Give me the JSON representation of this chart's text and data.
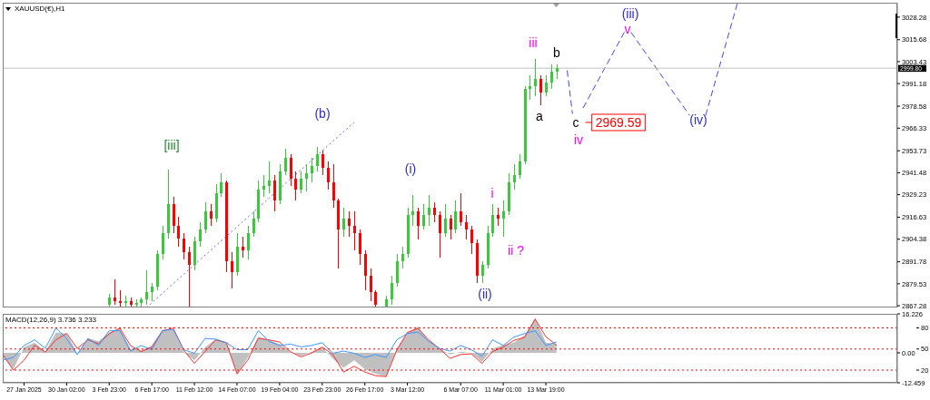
{
  "chart_data": [
    {
      "type": "candlestick",
      "title": "XAUUSD(€),H1",
      "categories": [
        null,
        null,
        null,
        null,
        null,
        null,
        null,
        null,
        null,
        null,
        null,
        null,
        null,
        null,
        null,
        null,
        null,
        null,
        null,
        null,
        null,
        null,
        null,
        null,
        null,
        null,
        null,
        null,
        null,
        null,
        null,
        null,
        null,
        null,
        null,
        null,
        null,
        null,
        null,
        null,
        null,
        null,
        null,
        null,
        null,
        null,
        null,
        null,
        null,
        null,
        null,
        null,
        null,
        null,
        null,
        null,
        null,
        null,
        null,
        null,
        null,
        null,
        null,
        null,
        null,
        null,
        null,
        null,
        null,
        null,
        null,
        null,
        null,
        null,
        null,
        null,
        null,
        null,
        null,
        null,
        null,
        null,
        null,
        null,
        null,
        null,
        null,
        null,
        null,
        null,
        null,
        null,
        null,
        null,
        null,
        null,
        null,
        null,
        null,
        null,
        null,
        null,
        null,
        null,
        null,
        null,
        null,
        null,
        null,
        null,
        null,
        null,
        null,
        null,
        null,
        null,
        null,
        null,
        null,
        null,
        null,
        null,
        null,
        null,
        null,
        null,
        null,
        null,
        null,
        null,
        null,
        null,
        null,
        null,
        null,
        null,
        null,
        null,
        null,
        null,
        null,
        null,
        null,
        null,
        null,
        null,
        null,
        null,
        null,
        null,
        null,
        null,
        null,
        null,
        null,
        null,
        null,
        null,
        null,
        null,
        null,
        null,
        null,
        null,
        null,
        null,
        null,
        null,
        null
      ],
      "ohlc": [
        null,
        null,
        null,
        null,
        null,
        null,
        null,
        null,
        null,
        null,
        null,
        null,
        null,
        null,
        null,
        null,
        null,
        null,
        null,
        null,
        [
          2868,
          2874,
          2867,
          2872
        ],
        [
          2872,
          2882,
          2868,
          2870
        ],
        [
          2870,
          2876,
          2867,
          2869
        ],
        [
          2869,
          2873,
          2867,
          2870
        ],
        [
          2870,
          2872,
          2867,
          2868
        ],
        [
          2868,
          2871,
          2867,
          2869
        ],
        [
          2869,
          2872,
          2867,
          2871
        ],
        [
          2871,
          2887,
          2868,
          2875
        ],
        [
          2875,
          2880,
          2870,
          2878
        ],
        [
          2878,
          2898,
          2876,
          2896
        ],
        [
          2896,
          2912,
          2893,
          2908
        ],
        [
          2908,
          2943,
          2905,
          2924
        ],
        [
          2924,
          2928,
          2908,
          2912
        ],
        [
          2912,
          2917,
          2900,
          2905
        ],
        [
          2905,
          2908,
          2893,
          2897
        ],
        [
          2897,
          2900,
          2867,
          2890
        ],
        [
          2890,
          2906,
          2887,
          2903
        ],
        [
          2903,
          2914,
          2900,
          2910
        ],
        [
          2910,
          2925,
          2908,
          2920
        ],
        [
          2920,
          2924,
          2912,
          2916
        ],
        [
          2916,
          2935,
          2914,
          2930
        ],
        [
          2930,
          2941,
          2928,
          2936
        ],
        [
          2936,
          2937,
          2886,
          2892
        ],
        [
          2892,
          2897,
          2877,
          2886
        ],
        [
          2886,
          2908,
          2884,
          2900
        ],
        [
          2900,
          2906,
          2894,
          2898
        ],
        [
          2898,
          2912,
          2893,
          2908
        ],
        [
          2908,
          2920,
          2906,
          2916
        ],
        [
          2916,
          2937,
          2914,
          2932
        ],
        [
          2932,
          2940,
          2928,
          2934
        ],
        [
          2934,
          2948,
          2930,
          2937
        ],
        [
          2937,
          2940,
          2920,
          2926
        ],
        [
          2926,
          2946,
          2924,
          2942
        ],
        [
          2942,
          2955,
          2940,
          2950
        ],
        [
          2950,
          2952,
          2934,
          2938
        ],
        [
          2938,
          2942,
          2926,
          2932
        ],
        [
          2932,
          2942,
          2930,
          2938
        ],
        [
          2938,
          2946,
          2931,
          2941
        ],
        [
          2941,
          2950,
          2936,
          2945
        ],
        [
          2945,
          2956,
          2942,
          2952
        ],
        [
          2952,
          2954,
          2940,
          2944
        ],
        [
          2944,
          2948,
          2932,
          2936
        ],
        [
          2936,
          2946,
          2922,
          2926
        ],
        [
          2926,
          2927,
          2888,
          2910
        ],
        [
          2910,
          2922,
          2906,
          2916
        ],
        [
          2916,
          2920,
          2906,
          2912
        ],
        [
          2912,
          2920,
          2898,
          2908
        ],
        [
          2908,
          2910,
          2890,
          2896
        ],
        [
          2896,
          2898,
          2876,
          2884
        ],
        [
          2884,
          2888,
          2870,
          2875
        ],
        [
          2875,
          2876,
          2867,
          2868
        ],
        null,
        [
          2867,
          2873,
          2867,
          2871
        ],
        [
          2871,
          2884,
          2868,
          2880
        ],
        [
          2880,
          2896,
          2878,
          2892
        ],
        [
          2892,
          2900,
          2888,
          2896
        ],
        [
          2896,
          2922,
          2894,
          2918
        ],
        [
          2918,
          2929,
          2912,
          2920
        ],
        [
          2920,
          2922,
          2904,
          2912
        ],
        [
          2912,
          2924,
          2910,
          2918
        ],
        [
          2918,
          2929,
          2912,
          2922
        ],
        [
          2922,
          2925,
          2914,
          2918
        ],
        [
          2918,
          2920,
          2894,
          2908
        ],
        [
          2908,
          2924,
          2906,
          2916
        ],
        [
          2916,
          2918,
          2904,
          2910
        ],
        [
          2910,
          2926,
          2908,
          2920
        ],
        [
          2920,
          2930,
          2912,
          2914
        ],
        [
          2914,
          2918,
          2904,
          2910
        ],
        [
          2910,
          2912,
          2896,
          2902
        ],
        [
          2902,
          2904,
          2880,
          2884
        ],
        [
          2884,
          2892,
          2880,
          2890
        ],
        [
          2890,
          2912,
          2888,
          2908
        ],
        [
          2908,
          2924,
          2906,
          2918
        ],
        [
          2918,
          2922,
          2912,
          2916
        ],
        [
          2916,
          2926,
          2906,
          2920
        ],
        [
          2920,
          2941,
          2918,
          2936
        ],
        [
          2936,
          2946,
          2932,
          2940
        ],
        [
          2940,
          2952,
          2938,
          2948
        ],
        [
          2948,
          2990,
          2946,
          2988
        ],
        [
          2988,
          2996,
          2982,
          2990
        ],
        [
          2990,
          3005,
          2984,
          2994
        ],
        [
          2994,
          2996,
          2979,
          2986
        ],
        [
          2986,
          2996,
          2984,
          2992
        ],
        [
          2992,
          3002,
          2988,
          2998
        ],
        [
          2998,
          3002,
          2994,
          2999.8
        ],
        null,
        null,
        null,
        null,
        null,
        null,
        null,
        null,
        null,
        null,
        null,
        null,
        null,
        null,
        null,
        null,
        null,
        null,
        null,
        null,
        null,
        null,
        null,
        null,
        null,
        null,
        null,
        null,
        null,
        null,
        null,
        null,
        null,
        null,
        null,
        null,
        null,
        null,
        null,
        null,
        null,
        null,
        null,
        null,
        null,
        null,
        null,
        null,
        null,
        null,
        null,
        null,
        null,
        null,
        null,
        null,
        null,
        null,
        null,
        null,
        null,
        null,
        null,
        null
      ],
      "colors": [
        null,
        null,
        null,
        null,
        null,
        null,
        null,
        null,
        null,
        null,
        null,
        null,
        null,
        null,
        null,
        null,
        null,
        null,
        null,
        null,
        "#3cc83c",
        "#ff0000",
        "#ff0000",
        "#3cc83c",
        "#ff0000",
        "#3cc83c",
        "#3cc83c",
        "#3cc83c",
        "#3cc83c",
        "#3cc83c",
        "#3cc83c",
        "#3cc83c",
        "#ff0000",
        "#ff0000",
        "#ff0000",
        "#ff0000",
        "#3cc83c",
        "#3cc83c",
        "#3cc83c",
        "#ff0000",
        "#3cc83c",
        "#3cc83c",
        "#ff0000",
        "#ff0000",
        "#3cc83c",
        "#ff0000",
        "#3cc83c",
        "#3cc83c",
        "#3cc83c",
        "#3cc83c",
        "#3cc83c",
        "#ff0000",
        "#3cc83c",
        "#3cc83c",
        "#ff0000",
        "#ff0000",
        "#3cc83c",
        "#3cc83c",
        "#3cc83c",
        "#3cc83c",
        "#ff0000",
        "#ff0000",
        "#ff0000",
        "#ff0000",
        "#3cc83c",
        "#ff0000",
        "#ff0000",
        "#ff0000",
        "#ff0000",
        "#ff0000",
        "#ff0000",
        null,
        "#3cc83c",
        "#3cc83c",
        "#3cc83c",
        "#3cc83c",
        "#3cc83c",
        "#3cc83c",
        "#ff0000",
        "#3cc83c",
        "#3cc83c",
        "#ff0000",
        "#ff0000",
        "#3cc83c",
        "#ff0000",
        "#3cc83c",
        "#ff0000",
        "#ff0000",
        "#ff0000",
        "#ff0000",
        "#3cc83c",
        "#3cc83c",
        "#3cc83c",
        "#ff0000",
        "#3cc83c",
        "#3cc83c",
        "#3cc83c",
        "#3cc83c",
        "#3cc83c",
        "#3cc83c",
        "#3cc83c",
        "#ff0000",
        "#3cc83c",
        "#3cc83c",
        "#3cc83c",
        null,
        null,
        null,
        null,
        null,
        null,
        null,
        null,
        null,
        null,
        null,
        null,
        null,
        null,
        null,
        null,
        null,
        null,
        null,
        null,
        null,
        null,
        null,
        null,
        null,
        null,
        null,
        null,
        null,
        null,
        null,
        null,
        null,
        null,
        null,
        null,
        null,
        null,
        null,
        null,
        null,
        null,
        null,
        null,
        null,
        null,
        null,
        null,
        null,
        null,
        null,
        null,
        null,
        null,
        null,
        null,
        null,
        null,
        null,
        null,
        null,
        null,
        null,
        null
      ],
      "series": [
        {
          "type": "line",
          "color": "#6666ff",
          "line_style": "dotted",
          "values": [
            null,
            null,
            null,
            null,
            null,
            null,
            null,
            null,
            null,
            null,
            null,
            null,
            null,
            null,
            null,
            null,
            null,
            null,
            null,
            null,
            null,
            null,
            null,
            null,
            null,
            null,
            null,
            2866.3,
            null,
            null,
            null,
            null,
            null,
            null,
            null,
            null,
            null,
            null,
            null,
            null,
            null,
            null,
            null,
            null,
            null,
            null,
            null,
            null,
            null,
            null,
            null,
            null,
            null,
            null,
            null,
            null,
            null,
            null,
            null,
            null,
            null,
            null,
            null,
            null,
            null,
            null,
            2969.6,
            null,
            null,
            null,
            null,
            null,
            null,
            null,
            null,
            null,
            null,
            null,
            null,
            null,
            null,
            null,
            null,
            null,
            null,
            null,
            null,
            null,
            null,
            null,
            null,
            null,
            null,
            null,
            null,
            null,
            null,
            null,
            null,
            null,
            null,
            null,
            null,
            null,
            null,
            null,
            null,
            null,
            null,
            null,
            null,
            null,
            null,
            null,
            null,
            null,
            null,
            null,
            null,
            null,
            null,
            null,
            null,
            null,
            null,
            null,
            null,
            null,
            null,
            null,
            null,
            null,
            null,
            null,
            null,
            null,
            null,
            null,
            null,
            null,
            null,
            null,
            null,
            null,
            null,
            null,
            null,
            null,
            null,
            null,
            null,
            null,
            null,
            null,
            null,
            null,
            null,
            null,
            null,
            null,
            null,
            null,
            null,
            null,
            null,
            null,
            null,
            null,
            null
          ]
        },
        {
          "type": "line",
          "color": "#4444ff",
          "line_style": "dashed",
          "values": [
            null,
            null,
            null,
            null,
            null,
            null,
            null,
            null,
            null,
            null,
            null,
            null,
            null,
            null,
            null,
            null,
            null,
            null,
            null,
            null,
            null,
            null,
            null,
            null,
            null,
            null,
            null,
            null,
            null,
            null,
            null,
            null,
            null,
            null,
            null,
            null,
            null,
            null,
            null,
            null,
            null,
            null,
            null,
            null,
            null,
            null,
            null,
            null,
            null,
            null,
            null,
            null,
            null,
            null,
            null,
            null,
            null,
            null,
            null,
            null,
            null,
            null,
            null,
            null,
            null,
            null,
            null,
            null,
            null,
            null,
            null,
            null,
            null,
            null,
            null,
            null,
            null,
            null,
            null,
            null,
            null,
            null,
            null,
            null,
            null,
            null,
            null,
            null,
            null,
            null,
            null,
            null,
            null,
            null,
            null,
            null,
            null,
            null,
            null,
            null,
            null,
            null,
            null,
            null,
            null,
            null,
            2998.5,
            2974.3,
            null,
            null,
            null,
            null,
            null,
            null,
            null,
            null,
            null,
            null,
            null,
            null,
            null,
            null,
            null,
            null,
            null,
            null,
            null,
            null,
            null,
            null,
            null,
            null,
            null,
            null,
            null,
            null,
            null,
            null,
            null,
            null,
            null,
            null,
            null,
            null,
            null,
            null,
            null,
            null,
            null,
            null,
            null,
            null,
            null,
            null,
            null,
            null,
            null,
            null,
            null,
            null,
            null,
            null,
            null,
            null,
            null,
            null,
            null,
            null,
            null
          ]
        },
        {
          "type": "line",
          "color": "#4444ff",
          "line_style": "dashed",
          "values": [
            null,
            null,
            null,
            null,
            null,
            null,
            null,
            null,
            null,
            null,
            null,
            null,
            null,
            null,
            null,
            null,
            null,
            null,
            null,
            null,
            null,
            null,
            null,
            null,
            null,
            null,
            null,
            null,
            null,
            null,
            null,
            null,
            null,
            null,
            null,
            null,
            null,
            null,
            null,
            null,
            null,
            null,
            null,
            null,
            null,
            null,
            null,
            null,
            null,
            null,
            null,
            null,
            null,
            null,
            null,
            null,
            null,
            null,
            null,
            null,
            null,
            null,
            null,
            null,
            null,
            null,
            null,
            null,
            null,
            null,
            null,
            null,
            null,
            null,
            null,
            null,
            null,
            null,
            null,
            null,
            null,
            null,
            null,
            null,
            null,
            null,
            null,
            null,
            null,
            null,
            null,
            null,
            null,
            null,
            null,
            null,
            null,
            null,
            null,
            null,
            null,
            null,
            null,
            null,
            null,
            null,
            null,
            null,
            null,
            2977.6,
            null,
            null,
            null,
            null,
            null,
            null,
            null,
            3021.3,
            null,
            null,
            null,
            null,
            null,
            null,
            null,
            null,
            null,
            null,
            null,
            null,
            null,
            null,
            null,
            null,
            null,
            null,
            null,
            null,
            null,
            null,
            null,
            null,
            null,
            null,
            null,
            null,
            null,
            null,
            null,
            null,
            null,
            null,
            null,
            null,
            null,
            null,
            null,
            null,
            null,
            null,
            null,
            null,
            null,
            null,
            null,
            null,
            null,
            null,
            null
          ]
        },
        {
          "type": "line",
          "color": "#4444ff",
          "line_style": "dashed",
          "values": [
            null,
            null,
            null,
            null,
            null,
            null,
            null,
            null,
            null,
            null,
            null,
            null,
            null,
            null,
            null,
            null,
            null,
            null,
            null,
            null,
            null,
            null,
            null,
            null,
            null,
            null,
            null,
            null,
            null,
            null,
            null,
            null,
            null,
            null,
            null,
            null,
            null,
            null,
            null,
            null,
            null,
            null,
            null,
            null,
            null,
            null,
            null,
            null,
            null,
            null,
            null,
            null,
            null,
            null,
            null,
            null,
            null,
            null,
            null,
            null,
            null,
            null,
            null,
            null,
            null,
            null,
            null,
            null,
            null,
            null,
            null,
            null,
            null,
            null,
            null,
            null,
            null,
            null,
            null,
            null,
            null,
            null,
            null,
            null,
            null,
            null,
            null,
            null,
            null,
            null,
            null,
            null,
            null,
            null,
            null,
            null,
            null,
            null,
            null,
            null,
            null,
            null,
            null,
            null,
            null,
            null,
            null,
            null,
            null,
            null,
            null,
            null,
            null,
            null,
            null,
            null,
            null,
            null,
            3019.8,
            null,
            null,
            null,
            null,
            null,
            null,
            null,
            null,
            null,
            null,
            2973.4,
            null,
            null,
            null,
            null,
            null,
            null,
            null,
            null,
            null,
            null,
            null,
            null,
            null,
            null,
            null,
            null,
            null,
            null,
            null,
            null,
            null,
            null,
            null,
            null,
            null,
            null,
            null,
            null,
            null,
            null,
            null,
            null,
            null,
            null,
            null,
            null,
            null,
            null,
            null
          ]
        },
        {
          "type": "line",
          "color": "#4444ff",
          "line_style": "dashed",
          "values": [
            null,
            null,
            null,
            null,
            null,
            null,
            null,
            null,
            null,
            null,
            null,
            null,
            null,
            null,
            null,
            null,
            null,
            null,
            null,
            null,
            null,
            null,
            null,
            null,
            null,
            null,
            null,
            null,
            null,
            null,
            null,
            null,
            null,
            null,
            null,
            null,
            null,
            null,
            null,
            null,
            null,
            null,
            null,
            null,
            null,
            null,
            null,
            null,
            null,
            null,
            null,
            null,
            null,
            null,
            null,
            null,
            null,
            null,
            null,
            null,
            null,
            null,
            null,
            null,
            null,
            null,
            null,
            null,
            null,
            null,
            null,
            null,
            null,
            null,
            null,
            null,
            null,
            null,
            null,
            null,
            null,
            null,
            null,
            null,
            null,
            null,
            null,
            null,
            null,
            null,
            null,
            null,
            null,
            null,
            null,
            null,
            null,
            null,
            null,
            null,
            null,
            null,
            null,
            null,
            null,
            null,
            null,
            null,
            null,
            null,
            null,
            null,
            null,
            null,
            null,
            null,
            null,
            null,
            null,
            null,
            null,
            null,
            null,
            null,
            null,
            null,
            null,
            null,
            null,
            null,
            null,
            null,
            2973.4,
            null,
            null,
            null,
            null,
            null,
            3036.3,
            null,
            null,
            null,
            null,
            null,
            null,
            null,
            null,
            null,
            null,
            null,
            null,
            null,
            null,
            null,
            null,
            null,
            null,
            null,
            null,
            null,
            null,
            null,
            null,
            null,
            null,
            null,
            null,
            null,
            null
          ]
        }
      ],
      "ylim": [
        2866.3,
        3036.3
      ],
      "yticks": [
        2867.28,
        2879.53,
        2891.78,
        2904.38,
        2916.63,
        2929.23,
        2941.48,
        2953.73,
        2966.33,
        2978.58,
        2991.18,
        3003.43,
        3015.68,
        3028.28
      ],
      "tick_labels": "y",
      "ref_lines": [
        {
          "axis": "y",
          "value": 2999.8,
          "label": "2999.80",
          "color": "#c0c0c0"
        }
      ],
      "annotations": [
        "[iii]",
        "(b)",
        "(i)",
        "(ii)",
        "i",
        "ii ?",
        "iii",
        "a",
        "b",
        "c",
        "iv",
        "2969.59",
        "v",
        "(iii)",
        "(iv)"
      ]
    },
    {
      "type": "line",
      "title": "MACD(12,26,9) 3.736 3.233",
      "categories": [
        null,
        null,
        "27 Jan 2025",
        null,
        null,
        null,
        "30 Jan 02:00",
        null,
        null,
        null,
        "3 Feb 23:00",
        null,
        null,
        null,
        "6 Feb 17:00",
        null,
        null,
        null,
        "11 Feb 12:00",
        null,
        null,
        null,
        "14 Feb 07:00",
        null,
        null,
        null,
        "19 Feb 04:00",
        null,
        null,
        null,
        "23 Feb 23:00",
        null,
        null,
        null,
        "26 Feb 17:00",
        null,
        null,
        null,
        "3 Mar 12:00",
        null,
        null,
        null,
        null,
        "6 Mar 07:00",
        null,
        null,
        null,
        "11 Mar 01:00",
        null,
        null,
        null,
        "13 Mar 19:00",
        null,
        null,
        null,
        null,
        null,
        null,
        null,
        null,
        null,
        null,
        null,
        null,
        null,
        null,
        null,
        null,
        null,
        null,
        null,
        null,
        null,
        null,
        null,
        null,
        null,
        null,
        null,
        null,
        null,
        null,
        null,
        null,
        null
      ],
      "series": [
        {
          "type": "area",
          "color": "#c0c0c0",
          "values": [
            -1.3,
            -6.8,
            2.4,
            4.2,
            0.5,
            8.5,
            7.9,
            -0.1,
            6.0,
            4.8,
            8.5,
            10.3,
            1.8,
            1.1,
            3.0,
            9.7,
            9.7,
            0.5,
            -3.1,
            2.4,
            5.7,
            4.2,
            -9.3,
            -1.9,
            6.7,
            5.4,
            3.6,
            0.5,
            -1.3,
            0.5,
            2.4,
            -2.5,
            -6.2,
            -3.1,
            -6.8,
            -8.7,
            -9.9,
            1.8,
            8.5,
            11.0,
            4.8,
            1.8,
            -0.7,
            0.5,
            -0.1,
            -3.8,
            1.8,
            3.2,
            4.2,
            7.3,
            14.6,
            4.2,
            3.7,
            null,
            null,
            null,
            null,
            null,
            null,
            null,
            null,
            null,
            null,
            null,
            null,
            null,
            null,
            null,
            null,
            null,
            null,
            null,
            null,
            null,
            null,
            null,
            null,
            null,
            null,
            null,
            null,
            null,
            null,
            null,
            null
          ]
        },
        {
          "type": "line",
          "color": "#ff3030",
          "values": [
            -0.7,
            -7.2,
            -3.1,
            3.2,
            0.3,
            5.4,
            8.1,
            1.8,
            5.4,
            3.8,
            7.9,
            10.3,
            3.0,
            0.5,
            2.4,
            9.1,
            10.3,
            1.1,
            -4.4,
            0.5,
            5.4,
            4.2,
            -8.7,
            -3.1,
            6.0,
            5.4,
            4.5,
            0.5,
            -1.7,
            -0.1,
            2.4,
            -0.7,
            -8.0,
            -5.6,
            -8.0,
            -9.5,
            -9.9,
            1.1,
            8.5,
            10.1,
            5.4,
            1.8,
            -2.3,
            -0.7,
            -0.4,
            -4.4,
            0.5,
            2.4,
            5.2,
            6.4,
            14.0,
            6.7,
            3.2,
            null,
            null,
            null,
            null,
            null,
            null,
            null,
            null,
            null,
            null,
            null,
            null,
            null,
            null,
            null,
            null,
            null,
            null,
            null,
            null,
            null,
            null,
            null,
            null,
            null,
            null,
            null,
            null,
            null,
            null,
            null,
            null
          ]
        },
        {
          "type": "line",
          "color": "#3c96ff",
          "axis": "y2",
          "values": [
            34,
            38,
            55,
            63,
            51,
            80,
            65,
            42,
            65,
            55,
            76,
            76,
            47,
            55,
            49,
            76,
            78,
            49,
            44,
            65,
            64,
            59,
            49,
            49,
            76,
            61,
            55,
            57,
            53,
            55,
            59,
            44,
            47,
            44,
            38,
            42,
            38,
            63,
            72,
            74,
            61,
            51,
            47,
            55,
            49,
            40,
            63,
            55,
            67,
            72,
            76,
            55,
            60,
            null,
            null,
            null,
            null,
            null,
            null,
            null,
            null,
            null,
            null,
            null,
            null,
            null,
            null,
            null,
            null,
            null,
            null,
            null,
            null,
            null,
            null,
            null,
            null,
            null,
            null,
            null,
            null,
            null,
            null,
            null,
            null
          ]
        }
      ],
      "ylim": [
        -12.459,
        16.226
      ],
      "yticks": [
        16.226,
        {
          "value": 0,
          "label": "0.00"
        },
        -12.459
      ],
      "y2lim": [
        2,
        100
      ],
      "y2ticks": [
        80,
        50,
        20
      ],
      "ref_lines": [
        {
          "axis": "y2",
          "value": 80,
          "color": "#ff0000",
          "line_style": "dotted"
        },
        {
          "axis": "y2",
          "value": 50,
          "color": "#ff0000",
          "line_style": "dotted"
        },
        {
          "axis": "y2",
          "value": 20,
          "color": "#ff0000",
          "line_style": "dotted"
        }
      ]
    }
  ]
}
